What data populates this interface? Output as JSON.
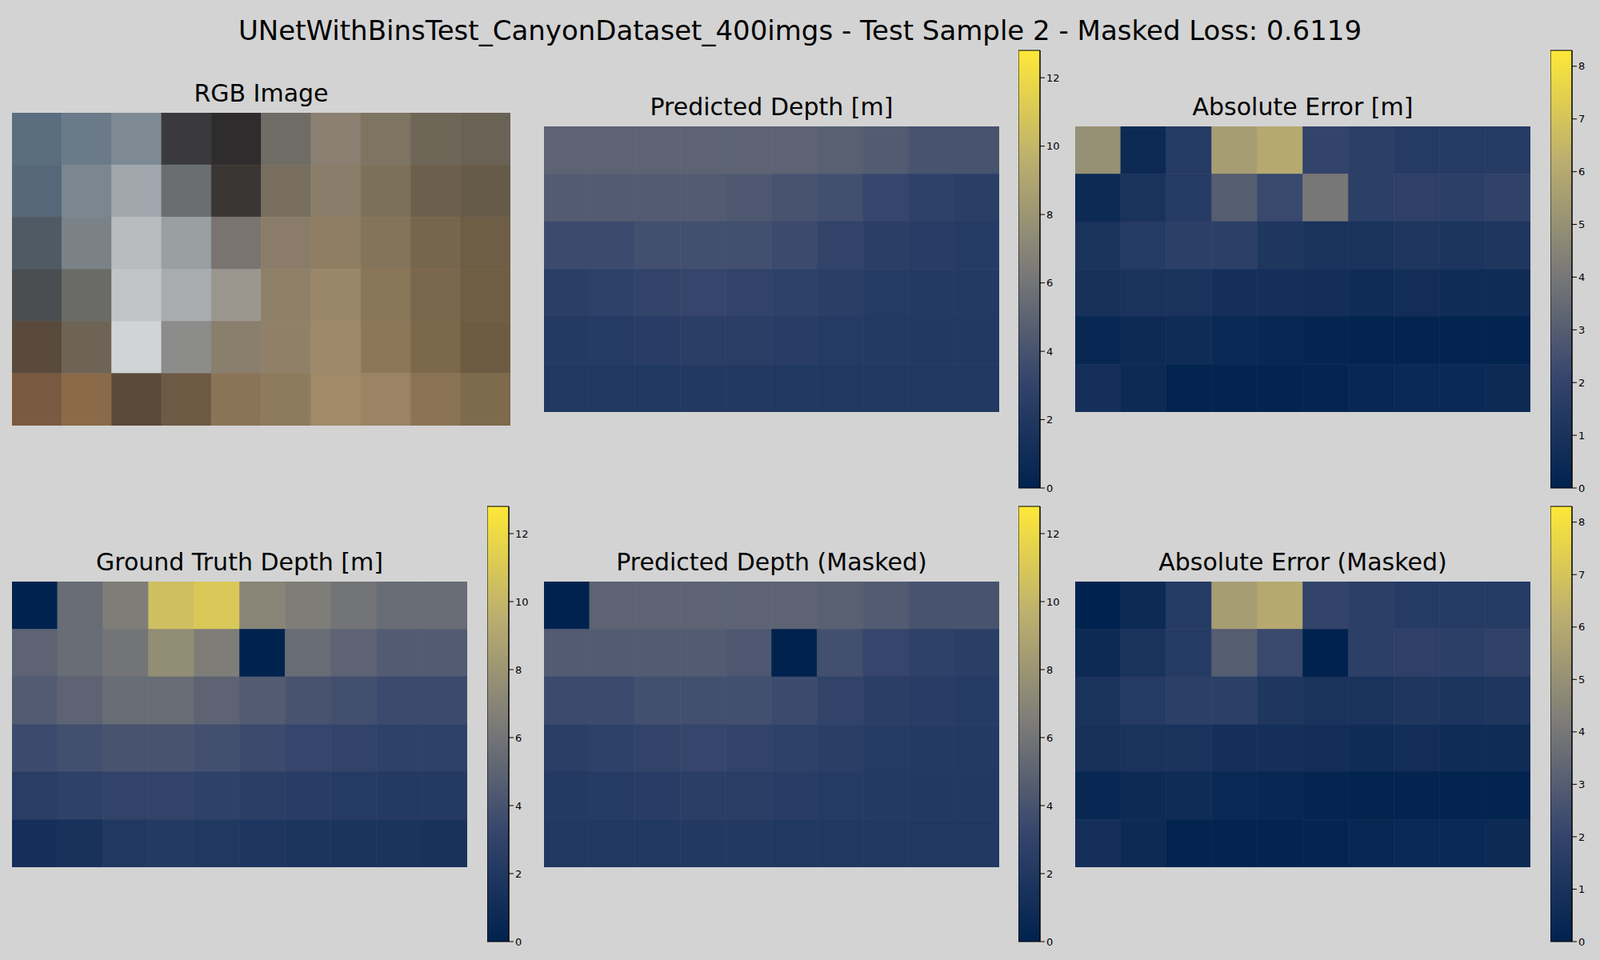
{
  "title": "UNetWithBinsTest_CanyonDataset_400imgs - Test Sample 2 - Masked Loss: 0.6119",
  "chart_data": [
    {
      "type": "image",
      "title": "RGB Image",
      "tick_labels": false,
      "pixels": [
        [
          "#5b6e80",
          "#6a7a88",
          "#7d8a94",
          "#3a3a3e",
          "#2e2c2c",
          "#6f6c66",
          "#8a7f70",
          "#7e7462",
          "#6e6656",
          "#6a6254"
        ],
        [
          "#56687a",
          "#7a8790",
          "#a0a8ae",
          "#6a6e70",
          "#3a3634",
          "#786e60",
          "#8a7e6a",
          "#7d705a",
          "#6c604c",
          "#665a48"
        ],
        [
          "#4e5a64",
          "#7a8288",
          "#b8bcbe",
          "#9aa0a2",
          "#7a7470",
          "#8a7c68",
          "#907e62",
          "#84745a",
          "#76664e",
          "#6e5e46"
        ],
        [
          "#4a4e50",
          "#6a6a66",
          "#c0c4c6",
          "#a8acae",
          "#9a968e",
          "#8e8068",
          "#9a8668",
          "#8a7658",
          "#7a664c",
          "#705e44"
        ],
        [
          "#5a4a3c",
          "#6e6456",
          "#d0d4d6",
          "#8c8c8a",
          "#8a7e6c",
          "#908068",
          "#9e8a6a",
          "#8c7858",
          "#7c684a",
          "#6e5c42"
        ],
        [
          "#7a5a40",
          "#8a6a48",
          "#5a4a3a",
          "#6e5a44",
          "#8a7458",
          "#8e7a5c",
          "#a08a68",
          "#9a8464",
          "#8a7454",
          "#7e6a4c"
        ]
      ]
    },
    {
      "type": "heatmap",
      "title": "Predicted Depth [m]",
      "tick_labels": false,
      "colorbar_range": [
        0,
        12.8
      ],
      "colorbar_ticks": [
        0,
        2,
        4,
        6,
        8,
        10,
        12
      ],
      "cells": [
        [
          5,
          5,
          5,
          5,
          5,
          5,
          4.8,
          4.5,
          4,
          4
        ],
        [
          4.5,
          4.5,
          4.5,
          4.5,
          4.3,
          4,
          3.8,
          3.2,
          2.8,
          2.6
        ],
        [
          3.5,
          3.5,
          3.8,
          3.8,
          3.8,
          3.5,
          3,
          2.6,
          2.4,
          2.3
        ],
        [
          2.6,
          2.8,
          3,
          3.2,
          3,
          2.8,
          2.6,
          2.3,
          2.2,
          2.2
        ],
        [
          2.2,
          2.3,
          2.4,
          2.6,
          2.5,
          2.4,
          2.3,
          2.2,
          2.1,
          2.1
        ],
        [
          2,
          2,
          2,
          2.1,
          2.1,
          2,
          2,
          2,
          2,
          2
        ]
      ]
    },
    {
      "type": "heatmap",
      "title": "Absolute Error [m]",
      "tick_labels": false,
      "colorbar_range": [
        0,
        8.3
      ],
      "colorbar_ticks": [
        0,
        1,
        2,
        3,
        4,
        5,
        6,
        7,
        8
      ],
      "cells": [
        [
          5,
          0.5,
          1.5,
          5.5,
          6,
          2,
          1.7,
          1.5,
          1.5,
          1.5
        ],
        [
          0.5,
          1,
          1.5,
          3,
          2.2,
          4,
          1.7,
          1.8,
          1.7,
          1.9
        ],
        [
          1,
          1.5,
          1.7,
          1.7,
          1.2,
          1,
          1,
          1.2,
          1.1,
          1.2
        ],
        [
          0.9,
          1,
          1,
          0.8,
          0.8,
          0.7,
          0.6,
          0.7,
          0.6,
          0.6
        ],
        [
          0.3,
          0.5,
          0.6,
          0.4,
          0.3,
          0.2,
          0.1,
          0.1,
          0.1,
          0.1
        ],
        [
          0.8,
          0.5,
          0.1,
          0.1,
          0.1,
          0.2,
          0.3,
          0.4,
          0.4,
          0.5
        ]
      ]
    },
    {
      "type": "heatmap",
      "title": "Ground Truth Depth [m]",
      "tick_labels": false,
      "colorbar_range": [
        0,
        12.8
      ],
      "colorbar_ticks": [
        0,
        2,
        4,
        6,
        8,
        10,
        12
      ],
      "cells": [
        [
          null,
          5.5,
          6.5,
          10.5,
          11,
          7,
          6.5,
          6,
          5.5,
          5.5
        ],
        [
          5,
          5.5,
          6,
          7.5,
          6.5,
          null,
          5.5,
          5,
          4.5,
          4.5
        ],
        [
          4.5,
          5,
          5.5,
          5.5,
          5,
          4.5,
          4,
          3.8,
          3.5,
          3.5
        ],
        [
          3.5,
          3.8,
          4,
          4,
          3.8,
          3.5,
          3.2,
          3,
          2.8,
          2.8
        ],
        [
          2.5,
          2.8,
          3,
          3,
          2.8,
          2.6,
          2.4,
          2.3,
          2.2,
          2.2
        ],
        [
          1.2,
          1.5,
          2,
          2.2,
          2,
          1.8,
          1.7,
          1.6,
          1.6,
          1.5
        ]
      ]
    },
    {
      "type": "heatmap",
      "title": "Predicted Depth (Masked)",
      "tick_labels": false,
      "colorbar_range": [
        0,
        12.8
      ],
      "colorbar_ticks": [
        0,
        2,
        4,
        6,
        8,
        10,
        12
      ],
      "cells": [
        [
          null,
          5,
          5,
          5,
          5,
          5,
          4.8,
          4.5,
          4,
          4
        ],
        [
          4.5,
          4.5,
          4.5,
          4.5,
          4.3,
          null,
          3.8,
          3.2,
          2.8,
          2.6
        ],
        [
          3.5,
          3.5,
          3.8,
          3.8,
          3.8,
          3.5,
          3,
          2.6,
          2.4,
          2.3
        ],
        [
          2.6,
          2.8,
          3,
          3.2,
          3,
          2.8,
          2.6,
          2.3,
          2.2,
          2.2
        ],
        [
          2.2,
          2.3,
          2.4,
          2.6,
          2.5,
          2.4,
          2.3,
          2.2,
          2.1,
          2.1
        ],
        [
          2,
          2,
          2,
          2.1,
          2.1,
          2,
          2,
          2,
          2,
          2
        ]
      ]
    },
    {
      "type": "heatmap",
      "title": "Absolute Error (Masked)",
      "tick_labels": false,
      "colorbar_range": [
        0,
        8.3
      ],
      "colorbar_ticks": [
        0,
        1,
        2,
        3,
        4,
        5,
        6,
        7,
        8
      ],
      "cells": [
        [
          null,
          0.5,
          1.5,
          5.5,
          6,
          2,
          1.7,
          1.5,
          1.5,
          1.5
        ],
        [
          0.5,
          1,
          1.5,
          3,
          2.2,
          null,
          1.7,
          1.8,
          1.7,
          1.9
        ],
        [
          1,
          1.5,
          1.7,
          1.7,
          1.2,
          1,
          1,
          1.2,
          1.1,
          1.2
        ],
        [
          0.9,
          1,
          1,
          0.8,
          0.8,
          0.7,
          0.6,
          0.7,
          0.6,
          0.6
        ],
        [
          0.3,
          0.5,
          0.6,
          0.4,
          0.3,
          0.2,
          0.1,
          0.1,
          0.1,
          0.1
        ],
        [
          0.8,
          0.5,
          0.1,
          0.1,
          0.1,
          0.2,
          0.3,
          0.4,
          0.4,
          0.5
        ]
      ]
    }
  ]
}
